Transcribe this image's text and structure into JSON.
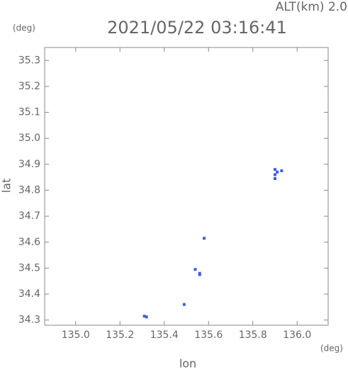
{
  "chart_data": {
    "type": "scatter",
    "title": "2021/05/22 03:16:41",
    "subtitle": "ALT(km) 2.0",
    "x_label": "lon",
    "y_label": "lat",
    "x_unit": "(deg)",
    "y_unit": "(deg)",
    "xlim": [
      134.86,
      136.14
    ],
    "ylim": [
      34.28,
      35.35
    ],
    "xticks": [
      {
        "value": 135.0,
        "label": "135.0"
      },
      135.2,
      135.4,
      135.6,
      135.8,
      {
        "value": 136.0,
        "label": "136.0"
      }
    ],
    "yticks": [
      34.3,
      34.4,
      34.5,
      34.6,
      34.7,
      34.8,
      34.9,
      {
        "value": 35.0,
        "label": "35.0"
      },
      35.1,
      35.2,
      35.3
    ],
    "series": [
      {
        "color": "#3f5fe0",
        "x": [
          135.31,
          135.32,
          135.49,
          135.56,
          135.56,
          135.54,
          135.58,
          135.9,
          135.91,
          135.93,
          135.9,
          135.9
        ],
        "values": [
          34.315,
          34.312,
          34.36,
          34.475,
          34.48,
          34.495,
          34.615,
          34.88,
          34.87,
          34.875,
          34.86,
          34.845
        ]
      }
    ]
  }
}
